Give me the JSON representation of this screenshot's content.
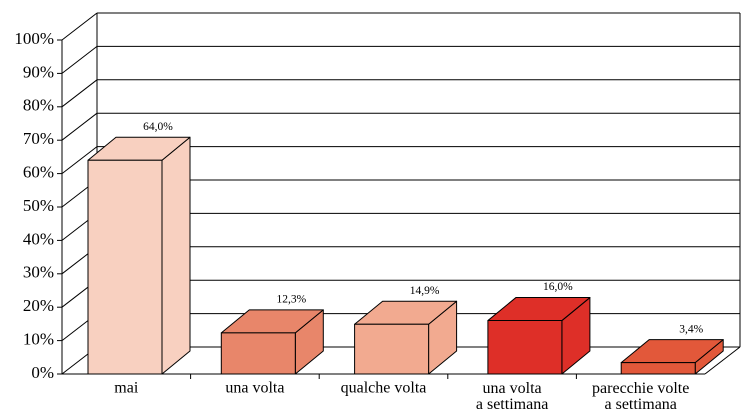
{
  "chart_data": {
    "type": "bar3d",
    "categories": [
      "mai",
      "una volta",
      "qualche volta",
      "una volta\na settimana",
      "parecchie volte\na settimana"
    ],
    "values": [
      64.0,
      12.3,
      14.9,
      16.0,
      3.4
    ],
    "value_labels": [
      "64,0%",
      "12,3%",
      "14,9%",
      "16,0%",
      "3,4%"
    ],
    "colors": [
      "#f8d0c0",
      "#e8866a",
      "#f2aa90",
      "#de2f28",
      "#e2583a"
    ],
    "ylim": [
      0,
      100
    ],
    "yticks": [
      {
        "value": 0,
        "label": "0%"
      },
      {
        "value": 10,
        "label": "10%"
      },
      {
        "value": 20,
        "label": "20%"
      },
      {
        "value": 30,
        "label": "30%"
      },
      {
        "value": 40,
        "label": "40%"
      },
      {
        "value": 50,
        "label": "50%"
      },
      {
        "value": 60,
        "label": "60%"
      },
      {
        "value": 70,
        "label": "70%"
      },
      {
        "value": 80,
        "label": "80%"
      },
      {
        "value": 90,
        "label": "90%"
      },
      {
        "value": 100,
        "label": "100%"
      }
    ],
    "grid": true
  }
}
